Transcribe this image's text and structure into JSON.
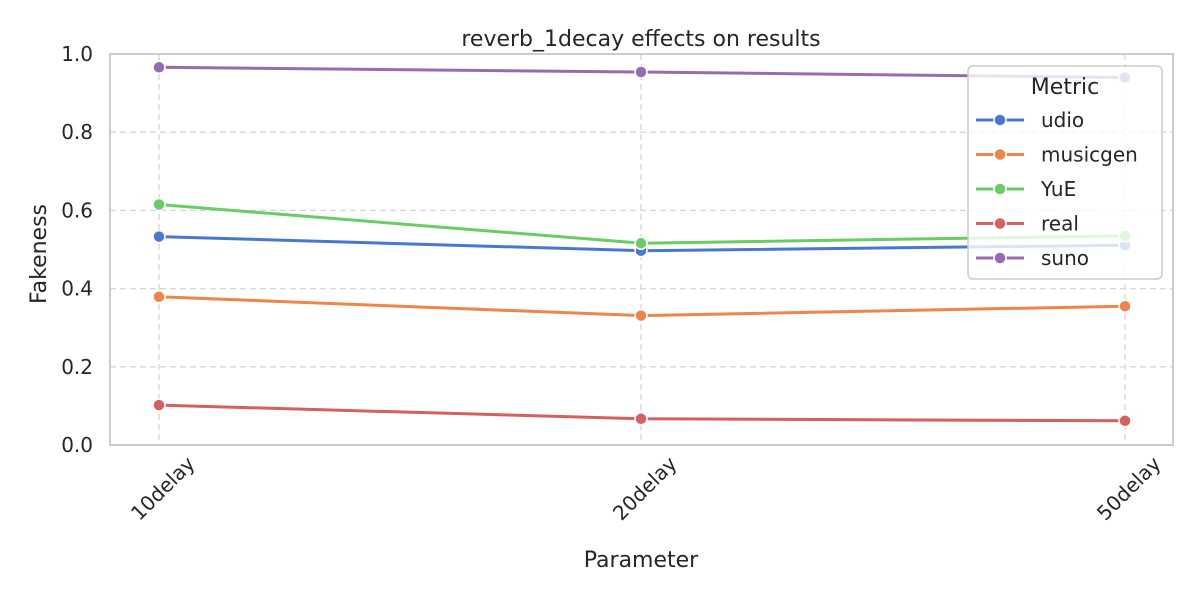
{
  "chart_data": {
    "type": "line",
    "title": "reverb_1decay effects on results",
    "xlabel": "Parameter",
    "ylabel": "Fakeness",
    "categories": [
      "10delay",
      "20delay",
      "50delay"
    ],
    "ylim": [
      0,
      1.0
    ],
    "yticks": [
      "0.0",
      "0.2",
      "0.4",
      "0.6",
      "0.8",
      "1.0"
    ],
    "grid": true,
    "legend": {
      "title": "Metric",
      "placement": "top-right"
    },
    "series": [
      {
        "name": "udio",
        "color": "#4878d0",
        "values": [
          0.533,
          0.497,
          0.511
        ]
      },
      {
        "name": "musicgen",
        "color": "#ee854a",
        "values": [
          0.379,
          0.331,
          0.355
        ]
      },
      {
        "name": "YuE",
        "color": "#6acc64",
        "values": [
          0.615,
          0.516,
          0.535
        ]
      },
      {
        "name": "real",
        "color": "#d65f5f",
        "values": [
          0.102,
          0.067,
          0.062
        ]
      },
      {
        "name": "suno",
        "color": "#956cb4",
        "values": [
          0.966,
          0.954,
          0.94
        ]
      }
    ]
  }
}
